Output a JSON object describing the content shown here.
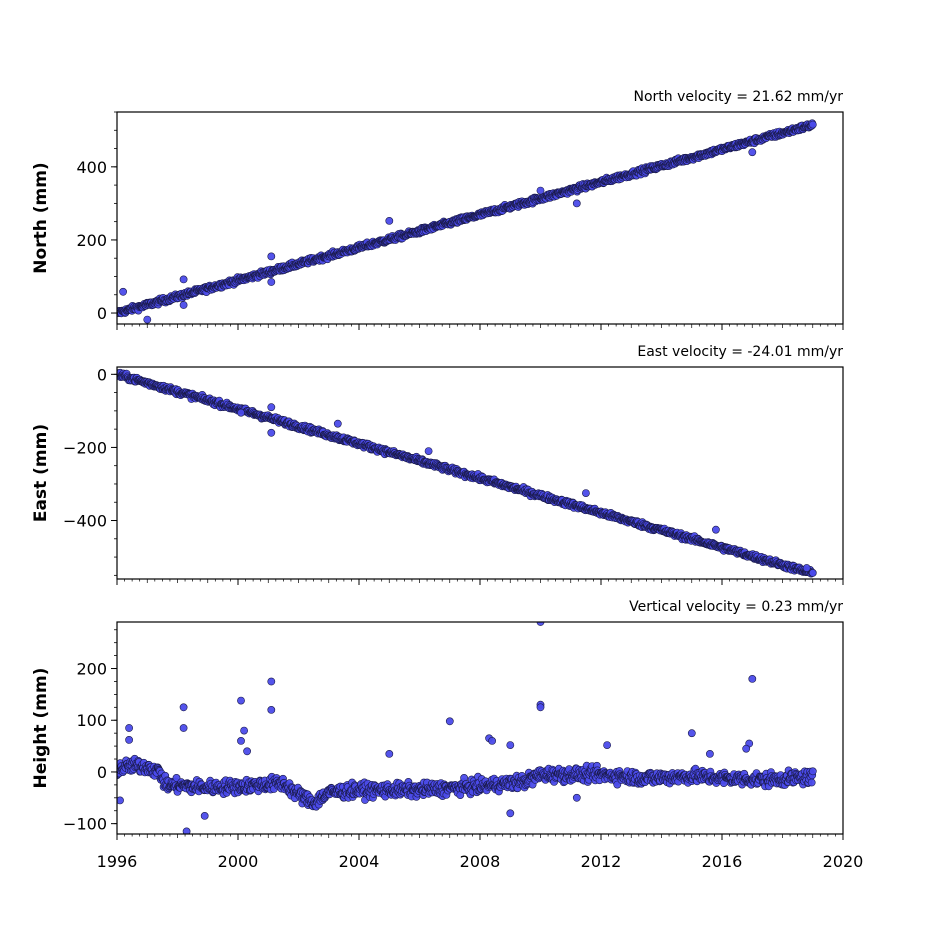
{
  "chart_data": [
    {
      "type": "scatter",
      "title": "North velocity = 21.62 mm/yr",
      "ylabel": "North (mm)",
      "xlim": [
        1996,
        2020
      ],
      "ylim": [
        -30,
        550
      ],
      "yticks": [
        0,
        200,
        400
      ],
      "ytick_labels": [
        "0",
        "200",
        "400"
      ],
      "trend": {
        "start": [
          1996,
          0
        ],
        "end": [
          2019.0,
          515
        ],
        "noise": 5
      },
      "outliers": [
        [
          1996.2,
          58
        ],
        [
          1997.0,
          -18
        ],
        [
          1998.2,
          92
        ],
        [
          1998.2,
          22
        ],
        [
          2001.1,
          155
        ],
        [
          2001.1,
          85
        ],
        [
          2005.0,
          252
        ],
        [
          2010.0,
          335
        ],
        [
          2011.2,
          300
        ],
        [
          2017.0,
          440
        ]
      ],
      "marker_color": "#4b4bea"
    },
    {
      "type": "scatter",
      "title": "East velocity = -24.01 mm/yr",
      "ylabel": "East (mm)",
      "xlim": [
        1996,
        2020
      ],
      "ylim": [
        -560,
        20
      ],
      "yticks": [
        0,
        -200,
        -400
      ],
      "ytick_labels": [
        "0",
        "−200",
        "−400"
      ],
      "trend": {
        "start": [
          1996,
          0
        ],
        "end": [
          2019.0,
          -545
        ],
        "noise": 5
      },
      "outliers": [
        [
          2000.1,
          -105
        ],
        [
          2001.1,
          -90
        ],
        [
          2001.1,
          -160
        ],
        [
          2003.3,
          -135
        ],
        [
          2006.3,
          -210
        ],
        [
          2011.5,
          -325
        ],
        [
          2015.8,
          -425
        ],
        [
          2018.8,
          -530
        ]
      ],
      "marker_color": "#4b4bea"
    },
    {
      "type": "scatter",
      "title": "Vertical velocity = 0.23 mm/yr",
      "ylabel": "Height (mm)",
      "xlabel": "",
      "xlim": [
        1996,
        2020
      ],
      "ylim": [
        -120,
        290
      ],
      "yticks": [
        -100,
        0,
        100,
        200
      ],
      "ytick_labels": [
        "−100",
        "0",
        "100",
        "200"
      ],
      "baseline": [
        [
          1996,
          5
        ],
        [
          1996.5,
          12
        ],
        [
          1997.0,
          10
        ],
        [
          1997.4,
          0
        ],
        [
          1997.6,
          -25
        ],
        [
          1999.0,
          -30
        ],
        [
          2000.0,
          -28
        ],
        [
          2001.5,
          -22
        ],
        [
          2001.9,
          -40
        ],
        [
          2002.5,
          -60
        ],
        [
          2003.0,
          -40
        ],
        [
          2004.0,
          -35
        ],
        [
          2006.0,
          -35
        ],
        [
          2008.0,
          -28
        ],
        [
          2009.5,
          -18
        ],
        [
          2010.0,
          -5
        ],
        [
          2012.0,
          -5
        ],
        [
          2013.5,
          -12
        ],
        [
          2015.0,
          -8
        ],
        [
          2016.0,
          -12
        ],
        [
          2017.5,
          -15
        ],
        [
          2019.0,
          -10
        ]
      ],
      "noise": 9,
      "outliers": [
        [
          1996.1,
          -55
        ],
        [
          1996.4,
          85
        ],
        [
          1996.4,
          62
        ],
        [
          1998.2,
          125
        ],
        [
          1998.2,
          85
        ],
        [
          1998.3,
          -115
        ],
        [
          1998.9,
          -85
        ],
        [
          2000.1,
          138
        ],
        [
          2000.2,
          80
        ],
        [
          2000.1,
          60
        ],
        [
          2000.3,
          40
        ],
        [
          2001.1,
          175
        ],
        [
          2001.1,
          120
        ],
        [
          2005.0,
          35
        ],
        [
          2007.0,
          98
        ],
        [
          2008.3,
          65
        ],
        [
          2008.4,
          60
        ],
        [
          2009.0,
          52
        ],
        [
          2009.0,
          -80
        ],
        [
          2010.0,
          290
        ],
        [
          2010.0,
          130
        ],
        [
          2010.0,
          125
        ],
        [
          2011.2,
          -50
        ],
        [
          2012.2,
          52
        ],
        [
          2015.0,
          75
        ],
        [
          2015.6,
          35
        ],
        [
          2017.0,
          180
        ],
        [
          2016.9,
          55
        ],
        [
          2016.8,
          45
        ]
      ],
      "marker_color": "#4b4bea"
    }
  ],
  "x_axis": {
    "ticks": [
      1996,
      2000,
      2004,
      2008,
      2012,
      2016,
      2020
    ],
    "tick_labels": [
      "1996",
      "2000",
      "2004",
      "2008",
      "2012",
      "2016",
      "2020"
    ]
  }
}
